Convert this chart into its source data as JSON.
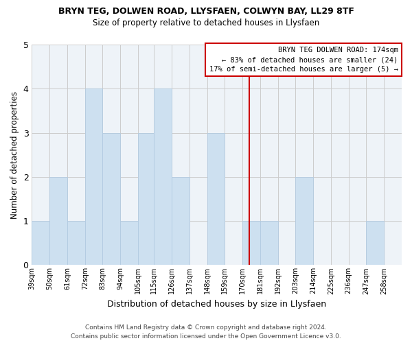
{
  "title": "BRYN TEG, DOLWEN ROAD, LLYSFAEN, COLWYN BAY, LL29 8TF",
  "subtitle": "Size of property relative to detached houses in Llysfaen",
  "xlabel": "Distribution of detached houses by size in Llysfaen",
  "ylabel": "Number of detached properties",
  "bin_labels": [
    "39sqm",
    "50sqm",
    "61sqm",
    "72sqm",
    "83sqm",
    "94sqm",
    "105sqm",
    "115sqm",
    "126sqm",
    "137sqm",
    "148sqm",
    "159sqm",
    "170sqm",
    "181sqm",
    "192sqm",
    "203sqm",
    "214sqm",
    "225sqm",
    "236sqm",
    "247sqm",
    "258sqm"
  ],
  "bar_heights": [
    1,
    2,
    1,
    4,
    3,
    1,
    3,
    4,
    2,
    0,
    3,
    0,
    1,
    1,
    0,
    2,
    0,
    0,
    0,
    1,
    0
  ],
  "bar_color": "#cde0f0",
  "bar_edge_color": "#aec8e0",
  "grid_color": "#cccccc",
  "reference_line_color": "#cc0000",
  "annotation_title": "BRYN TEG DOLWEN ROAD: 174sqm",
  "annotation_line1": "← 83% of detached houses are smaller (24)",
  "annotation_line2": "17% of semi-detached houses are larger (5) →",
  "annotation_box_edge": "#cc0000",
  "ylim": [
    0,
    5
  ],
  "yticks": [
    0,
    1,
    2,
    3,
    4,
    5
  ],
  "footer1": "Contains HM Land Registry data © Crown copyright and database right 2024.",
  "footer2": "Contains public sector information licensed under the Open Government Licence v3.0.",
  "bin_edges": [
    39,
    50,
    61,
    72,
    83,
    94,
    105,
    115,
    126,
    137,
    148,
    159,
    170,
    181,
    192,
    203,
    214,
    225,
    236,
    247,
    258,
    269
  ]
}
